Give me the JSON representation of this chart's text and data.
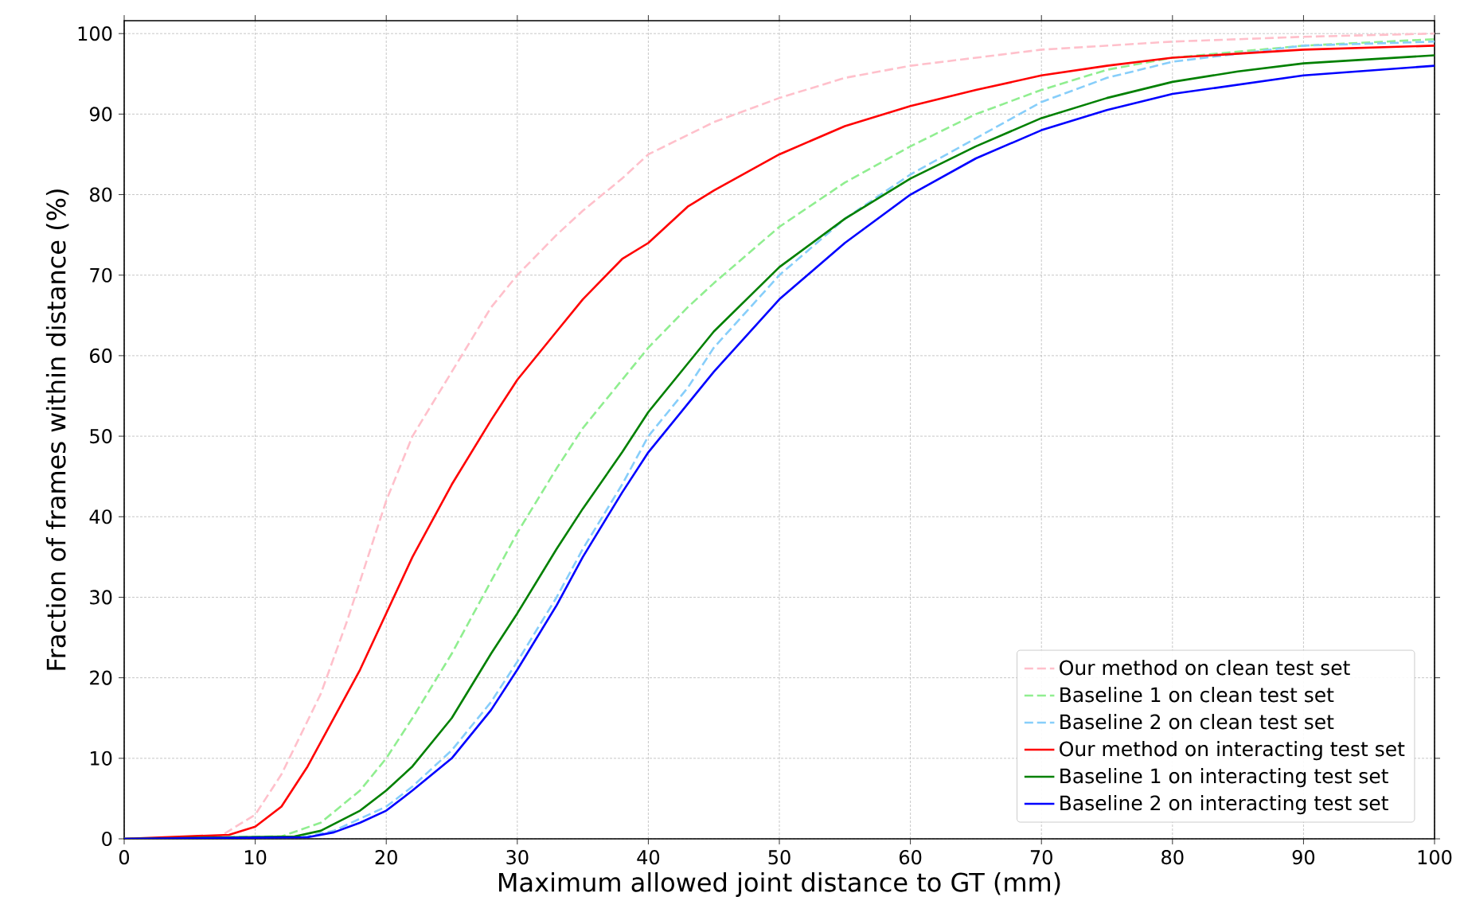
{
  "chart_data": {
    "type": "line",
    "xlabel": "Maximum allowed joint distance to GT (mm)",
    "ylabel": "Fraction of frames within distance (%)",
    "xlim": [
      0,
      100
    ],
    "ylim": [
      0,
      101.6
    ],
    "xticks": [
      0,
      10,
      20,
      30,
      40,
      50,
      60,
      70,
      80,
      90,
      100
    ],
    "yticks": [
      0,
      10,
      20,
      30,
      40,
      50,
      60,
      70,
      80,
      90,
      100
    ],
    "grid": true,
    "legend": "bottom right",
    "marker": "none",
    "series": [
      {
        "name": "Our method on clean test set",
        "color": "#ffc0cb",
        "line_style": "dashed",
        "x": [
          0,
          7,
          10,
          12,
          15,
          17,
          20,
          22,
          25,
          28,
          30,
          33,
          35,
          38,
          40,
          45,
          50,
          55,
          60,
          65,
          70,
          80,
          90,
          100
        ],
        "values": [
          0,
          0,
          3,
          8,
          18,
          27,
          42,
          50,
          58,
          66,
          70,
          75,
          78,
          82,
          85,
          89,
          92,
          94.5,
          96,
          97,
          98,
          99,
          99.6,
          100
        ]
      },
      {
        "name": "Baseline 1 on clean test set",
        "color": "#90ee90",
        "line_style": "dashed",
        "x": [
          0,
          12,
          15,
          18,
          20,
          22,
          25,
          28,
          30,
          33,
          35,
          38,
          40,
          43,
          45,
          50,
          55,
          60,
          65,
          70,
          75,
          80,
          90,
          100
        ],
        "values": [
          0,
          0.3,
          2,
          6,
          10,
          15,
          23,
          32,
          38,
          46,
          51,
          57,
          61,
          66,
          69,
          76,
          81.5,
          86,
          90,
          93,
          95.5,
          97,
          98.5,
          99.3
        ]
      },
      {
        "name": "Baseline 2 on clean test set",
        "color": "#87cefa",
        "line_style": "dashed",
        "x": [
          0,
          14,
          16,
          18,
          20,
          22,
          25,
          28,
          30,
          33,
          35,
          38,
          40,
          43,
          45,
          50,
          55,
          60,
          65,
          70,
          75,
          80,
          90,
          100
        ],
        "values": [
          0,
          0.3,
          1,
          2.5,
          4,
          6.5,
          11,
          17,
          22,
          30,
          36,
          44,
          50,
          56,
          61,
          70,
          77,
          82.5,
          87,
          91.5,
          94.5,
          96.5,
          98.5,
          99
        ]
      },
      {
        "name": "Our method on interacting test set",
        "color": "#ff0000",
        "line_style": "solid",
        "x": [
          0,
          8,
          10,
          12,
          14,
          16,
          18,
          20,
          22,
          25,
          28,
          30,
          33,
          35,
          38,
          40,
          43,
          45,
          50,
          55,
          60,
          65,
          70,
          75,
          80,
          90,
          100
        ],
        "values": [
          0,
          0.5,
          1.5,
          4,
          9,
          15,
          21,
          28,
          35,
          44,
          52,
          57,
          63,
          67,
          72,
          74,
          78.5,
          80.5,
          85,
          88.5,
          91,
          93,
          94.8,
          96,
          97,
          98,
          98.5
        ]
      },
      {
        "name": "Baseline 1 on interacting test set",
        "color": "#008000",
        "line_style": "solid",
        "x": [
          0,
          13,
          15,
          18,
          20,
          22,
          25,
          28,
          30,
          33,
          35,
          38,
          40,
          43,
          45,
          50,
          55,
          60,
          65,
          70,
          75,
          80,
          85,
          90,
          100
        ],
        "values": [
          0,
          0.3,
          1,
          3.5,
          6,
          9,
          15,
          23,
          28,
          36,
          41,
          48,
          53,
          59,
          63,
          71,
          77,
          82,
          86,
          89.5,
          92,
          94,
          95.3,
          96.3,
          97.3
        ]
      },
      {
        "name": "Baseline 2 on interacting test set",
        "color": "#0000ff",
        "line_style": "solid",
        "x": [
          0,
          14,
          16,
          18,
          20,
          22,
          25,
          28,
          30,
          33,
          35,
          38,
          40,
          43,
          45,
          50,
          55,
          60,
          65,
          70,
          75,
          80,
          90,
          100
        ],
        "values": [
          0,
          0.2,
          0.8,
          2,
          3.5,
          6,
          10,
          16,
          21,
          29,
          35,
          43,
          48,
          54,
          58,
          67,
          74,
          80,
          84.5,
          88,
          90.5,
          92.5,
          94.8,
          96
        ]
      }
    ]
  }
}
